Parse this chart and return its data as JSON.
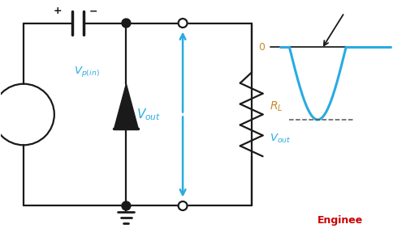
{
  "bg_color": "#ffffff",
  "line_color": "#1a1a1a",
  "cyan_color": "#29abe2",
  "red_color": "#cc0000",
  "orange_color": "#c8882a",
  "diode_fill": "#1a1a1a",
  "labels": {
    "Vpin": "$V_{p(in)}$",
    "Vout_center": "$V_{out}$",
    "Vout_right": "$V_{out}$",
    "RL": "$R_L$",
    "zero": "0",
    "engineer": "Enginee",
    "plus": "+",
    "minus": "−"
  },
  "layout": {
    "fig_w": 4.85,
    "fig_h": 2.93,
    "dpi": 100,
    "xlim": [
      0,
      4.85
    ],
    "ylim": [
      0,
      2.93
    ]
  }
}
